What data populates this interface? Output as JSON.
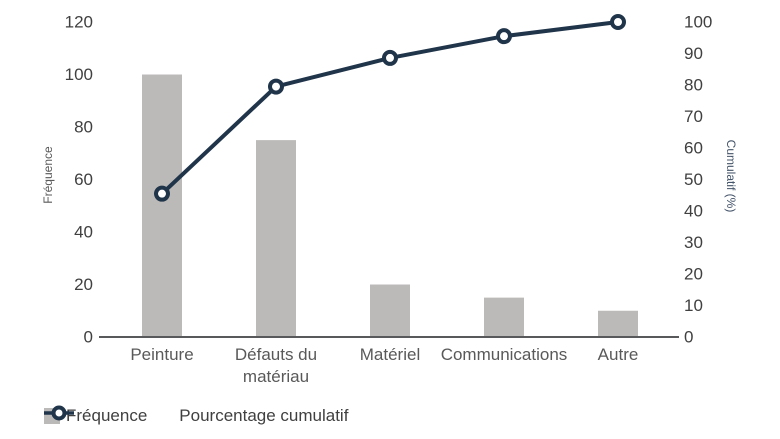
{
  "chart_data": {
    "type": "bar",
    "subtype": "pareto",
    "title": "",
    "categories": [
      "Peinture",
      "Défauts du matériau",
      "Matériel",
      "Communications",
      "Autre"
    ],
    "series": [
      {
        "name": "Fréquence",
        "type": "bar",
        "axis": "left",
        "values": [
          100,
          75,
          20,
          15,
          10
        ]
      },
      {
        "name": "Pourcentage cumulatif",
        "type": "line",
        "axis": "right",
        "values": [
          45.5,
          79.5,
          88.6,
          95.5,
          100
        ]
      }
    ],
    "left_axis": {
      "label": "Fréquence",
      "min": 0,
      "max": 120,
      "step": 20,
      "ticks": [
        0,
        20,
        40,
        60,
        80,
        100,
        120
      ]
    },
    "right_axis": {
      "label": "Cumulatif (%)",
      "min": 0,
      "max": 100,
      "step": 10,
      "ticks": [
        0,
        10,
        20,
        30,
        40,
        50,
        60,
        70,
        80,
        90,
        100
      ]
    },
    "legend": {
      "position": "bottom",
      "items": [
        {
          "label": "Fréquence",
          "marker": "square"
        },
        {
          "label": "Pourcentage cumulatif",
          "marker": "line-circle"
        }
      ]
    },
    "grid": false,
    "colors": {
      "bar": "#bcbab8",
      "line": "#20344a",
      "axis_line": "#58595b",
      "tick_text": "#404040",
      "category_text": "#595959",
      "background": "#ffffff"
    }
  }
}
